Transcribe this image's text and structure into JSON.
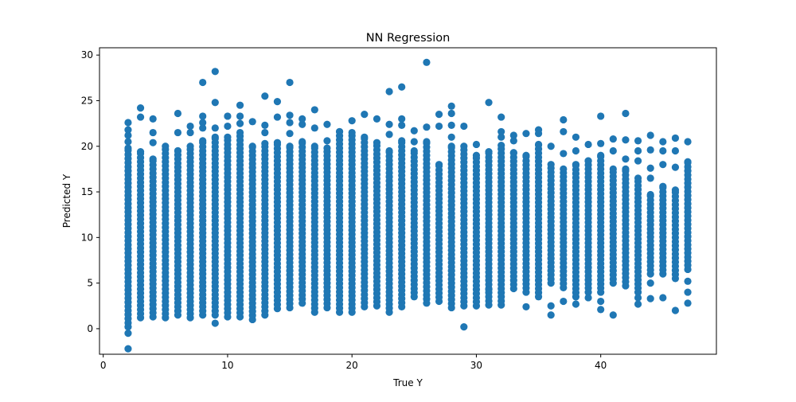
{
  "chart_data": {
    "type": "scatter",
    "title": "NN Regression",
    "xlabel": "True Y",
    "ylabel": "Predicted Y",
    "xlim": [
      -0.3,
      49.3
    ],
    "ylim": [
      -2.8,
      30.8
    ],
    "x_ticks": [
      {
        "value": 0,
        "label": "0"
      },
      {
        "value": 10,
        "label": "10"
      },
      {
        "value": 20,
        "label": "20"
      },
      {
        "value": 30,
        "label": "30"
      },
      {
        "value": 40,
        "label": "40"
      }
    ],
    "y_ticks": [
      {
        "value": 0,
        "label": "0"
      },
      {
        "value": 5,
        "label": "5"
      },
      {
        "value": 10,
        "label": "10"
      },
      {
        "value": 15,
        "label": "15"
      },
      {
        "value": 20,
        "label": "20"
      },
      {
        "value": 25,
        "label": "25"
      },
      {
        "value": 30,
        "label": "30"
      }
    ],
    "grid": false,
    "legend": "none",
    "marker_color": "#1f77b4",
    "columns": [
      {
        "x": 2,
        "min": 0.2,
        "max": 19.8,
        "outliers": [
          -2.2,
          -0.5,
          20.5,
          21.2,
          21.8,
          22.6
        ]
      },
      {
        "x": 3,
        "min": 1.2,
        "max": 19.4,
        "outliers": [
          23.2,
          24.2
        ]
      },
      {
        "x": 4,
        "min": 1.3,
        "max": 18.6,
        "outliers": [
          20.4,
          21.5,
          23.0
        ]
      },
      {
        "x": 5,
        "min": 1.2,
        "max": 20.0,
        "outliers": []
      },
      {
        "x": 6,
        "min": 1.5,
        "max": 19.5,
        "outliers": [
          21.5,
          23.6
        ]
      },
      {
        "x": 7,
        "min": 1.2,
        "max": 20.0,
        "outliers": [
          21.5,
          22.2
        ]
      },
      {
        "x": 8,
        "min": 1.5,
        "max": 20.6,
        "outliers": [
          22.0,
          22.6,
          23.3,
          27.0
        ]
      },
      {
        "x": 9,
        "min": 1.5,
        "max": 21.0,
        "outliers": [
          0.6,
          22.0,
          24.8,
          28.2
        ]
      },
      {
        "x": 10,
        "min": 1.3,
        "max": 21.0,
        "outliers": [
          22.2,
          23.3
        ]
      },
      {
        "x": 11,
        "min": 1.3,
        "max": 21.5,
        "outliers": [
          22.5,
          23.3,
          24.5
        ]
      },
      {
        "x": 12,
        "min": 1.0,
        "max": 20.0,
        "outliers": [
          22.7
        ]
      },
      {
        "x": 13,
        "min": 1.5,
        "max": 20.3,
        "outliers": [
          21.5,
          22.3,
          25.5
        ]
      },
      {
        "x": 14,
        "min": 2.2,
        "max": 20.4,
        "outliers": [
          23.2,
          24.9
        ]
      },
      {
        "x": 15,
        "min": 2.3,
        "max": 20.0,
        "outliers": [
          21.4,
          22.6,
          23.4,
          27.0
        ]
      },
      {
        "x": 16,
        "min": 2.8,
        "max": 20.5,
        "outliers": [
          22.4,
          23.0
        ]
      },
      {
        "x": 17,
        "min": 1.8,
        "max": 20.0,
        "outliers": [
          22.0,
          24.0
        ]
      },
      {
        "x": 18,
        "min": 2.3,
        "max": 19.8,
        "outliers": [
          20.6,
          22.4
        ]
      },
      {
        "x": 19,
        "min": 1.8,
        "max": 21.6,
        "outliers": []
      },
      {
        "x": 20,
        "min": 1.8,
        "max": 21.5,
        "outliers": [
          22.8
        ]
      },
      {
        "x": 21,
        "min": 2.4,
        "max": 21.0,
        "outliers": [
          23.5
        ]
      },
      {
        "x": 22,
        "min": 2.5,
        "max": 20.4,
        "outliers": [
          23.0
        ]
      },
      {
        "x": 23,
        "min": 1.8,
        "max": 19.5,
        "outliers": [
          21.3,
          22.4,
          26.0
        ]
      },
      {
        "x": 24,
        "min": 2.4,
        "max": 20.6,
        "outliers": [
          22.3,
          23.0,
          26.5
        ]
      },
      {
        "x": 25,
        "min": 3.5,
        "max": 19.5,
        "outliers": [
          20.5,
          21.7
        ]
      },
      {
        "x": 26,
        "min": 2.8,
        "max": 20.5,
        "outliers": [
          22.1,
          29.2
        ]
      },
      {
        "x": 27,
        "min": 3.0,
        "max": 18.0,
        "outliers": [
          22.2,
          23.5
        ]
      },
      {
        "x": 28,
        "min": 2.3,
        "max": 20.0,
        "outliers": [
          21.0,
          22.3,
          23.6,
          24.4
        ]
      },
      {
        "x": 29,
        "min": 2.5,
        "max": 20.0,
        "outliers": [
          0.2,
          22.2
        ]
      },
      {
        "x": 30,
        "min": 2.5,
        "max": 19.0,
        "outliers": [
          20.2
        ]
      },
      {
        "x": 31,
        "min": 2.6,
        "max": 19.4,
        "outliers": [
          4.3,
          24.8
        ]
      },
      {
        "x": 32,
        "min": 2.6,
        "max": 20.1,
        "outliers": [
          21.0,
          21.6,
          23.2
        ]
      },
      {
        "x": 33,
        "min": 4.4,
        "max": 19.3,
        "outliers": [
          20.6,
          21.2
        ]
      },
      {
        "x": 34,
        "min": 4.0,
        "max": 19.0,
        "outliers": [
          2.4,
          21.4
        ]
      },
      {
        "x": 35,
        "min": 3.5,
        "max": 20.2,
        "outliers": [
          21.4,
          21.8
        ]
      },
      {
        "x": 36,
        "min": 5.0,
        "max": 18.0,
        "outliers": [
          1.5,
          2.5,
          20.0
        ]
      },
      {
        "x": 37,
        "min": 4.5,
        "max": 17.5,
        "outliers": [
          3.0,
          19.2,
          21.6,
          22.9
        ]
      },
      {
        "x": 38,
        "min": 3.5,
        "max": 18.0,
        "outliers": [
          2.7,
          19.5,
          21.0
        ]
      },
      {
        "x": 39,
        "min": 4.0,
        "max": 18.4,
        "outliers": [
          3.4,
          20.2
        ]
      },
      {
        "x": 40,
        "min": 4.0,
        "max": 19.0,
        "outliers": [
          2.1,
          3.0,
          20.3,
          23.3
        ]
      },
      {
        "x": 41,
        "min": 5.0,
        "max": 17.5,
        "outliers": [
          1.5,
          19.5,
          20.8
        ]
      },
      {
        "x": 42,
        "min": 4.7,
        "max": 17.5,
        "outliers": [
          18.6,
          20.7,
          23.6
        ]
      },
      {
        "x": 43,
        "min": 4.0,
        "max": 16.5,
        "outliers": [
          2.7,
          3.4,
          18.4,
          19.5,
          20.6
        ]
      },
      {
        "x": 44,
        "min": 6.0,
        "max": 14.7,
        "outliers": [
          3.3,
          5.0,
          16.5,
          17.6,
          19.6,
          21.2
        ]
      },
      {
        "x": 45,
        "min": 6.0,
        "max": 15.6,
        "outliers": [
          3.4,
          18.0,
          19.5,
          20.5
        ]
      },
      {
        "x": 46,
        "min": 5.5,
        "max": 15.2,
        "outliers": [
          2.0,
          17.7,
          19.5,
          20.9
        ]
      },
      {
        "x": 47,
        "min": 6.5,
        "max": 18.3,
        "outliers": [
          2.8,
          4.0,
          5.2,
          20.5
        ]
      }
    ]
  }
}
